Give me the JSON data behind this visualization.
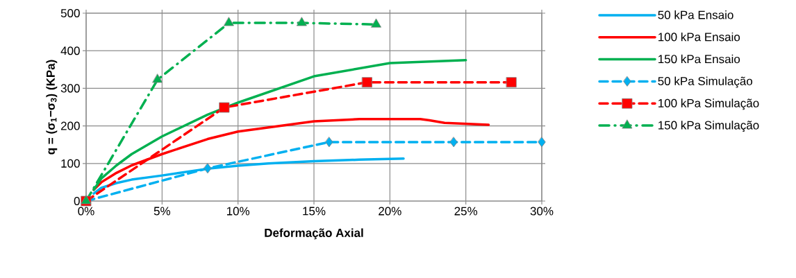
{
  "chart_data": {
    "type": "line",
    "xlabel": "Deformação Axial",
    "ylabel": "q = (σ$_{1}$−σ$_{3}$)  (KPa)",
    "xlim": [
      0,
      30
    ],
    "ylim": [
      0,
      500
    ],
    "xticks": [
      {
        "value": 0,
        "label": "0%"
      },
      {
        "value": 5,
        "label": "5%"
      },
      {
        "value": 10,
        "label": "10%"
      },
      {
        "value": 15,
        "label": "15%"
      },
      {
        "value": 20,
        "label": "20%"
      },
      {
        "value": 25,
        "label": "25%"
      },
      {
        "value": 30,
        "label": "30%"
      }
    ],
    "yticks": [
      0,
      100,
      200,
      300,
      400,
      500
    ],
    "grid": true,
    "legend": "right",
    "series": [
      {
        "name": "50 kPa Ensaio",
        "color": "#00b0f0",
        "line_style": "solid",
        "marker": "none",
        "x": [
          0.5,
          1,
          2,
          3,
          5,
          8,
          10,
          12,
          15,
          18,
          20.9
        ],
        "values": [
          20,
          35,
          48,
          57,
          68,
          86,
          94,
          100,
          106,
          110,
          113
        ]
      },
      {
        "name": "100 kPa Ensaio",
        "color": "#ff0000",
        "line_style": "solid",
        "marker": "none",
        "x": [
          0.5,
          1,
          2,
          3,
          5,
          8,
          10,
          15,
          18,
          22,
          22.6,
          23.6,
          26.5
        ],
        "values": [
          30,
          50,
          75,
          95,
          125,
          165,
          185,
          212,
          218,
          218,
          215,
          208,
          203
        ]
      },
      {
        "name": "150 kPa Ensaio",
        "color": "#00b050",
        "line_style": "solid",
        "marker": "none",
        "x": [
          0.5,
          1,
          2,
          3,
          5,
          8,
          10,
          15,
          20,
          25
        ],
        "values": [
          30,
          60,
          95,
          125,
          172,
          230,
          262,
          332,
          367,
          375
        ]
      },
      {
        "name": "50 kPa Simulação",
        "color": "#00b0f0",
        "line_style": "dashed",
        "marker": "diamond",
        "x": [
          0,
          8,
          16,
          24.2,
          30
        ],
        "values": [
          0,
          87,
          157,
          157,
          157
        ]
      },
      {
        "name": "100 kPa Simulação",
        "color": "#ff0000",
        "line_style": "dashed",
        "marker": "square",
        "x": [
          0,
          9.1,
          18.5,
          28
        ],
        "values": [
          0,
          249,
          316,
          316
        ]
      },
      {
        "name": "150 kPa Simulação",
        "color": "#00b050",
        "line_style": "dashdot",
        "marker": "triangle",
        "x": [
          0,
          4.7,
          9.4,
          14.2,
          19.1
        ],
        "values": [
          0,
          323,
          474,
          474,
          470
        ]
      }
    ]
  }
}
